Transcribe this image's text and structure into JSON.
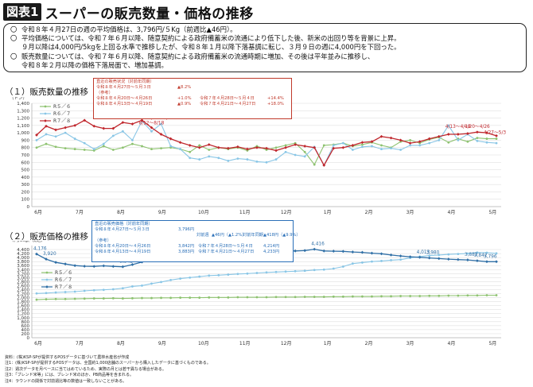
{
  "header": {
    "tag": "図表1",
    "title": "スーパーの販売数量・価格の推移"
  },
  "summary": {
    "bullets": [
      [
        "令和８年４月27日の週の平均価格は、3,796円/５Kg（前週比▲46円）。"
      ],
      [
        "平均価格については、令和７年６月以降、随意契約による政府備蓄米の流通により低下した後、新米の出回り等を背景に上昇。",
        "９月以降は4,000円/5kgを上回る水準で推移したが、令和８年１月以降下落基調に転じ、３月９日の週に4,000円を下回った。"
      ],
      [
        "販売数量については、令和７年６月以降、随意契約による政府備蓄米の流通時期に増加、その後は平年並みに推移し、",
        "令和８年２月以降の価格下落局面で、増加基調。"
      ]
    ],
    "bullet_mark": "〇"
  },
  "sales_box": {
    "title": "直近の販売状況（対前年同期）",
    "row1": {
      "period": "令和８年４月27日～５月３日",
      "value": "▲8.2%"
    },
    "ref_label": "（参考）",
    "row2": {
      "period": "令和８年４月20日～４月26日",
      "value": "+1.0%",
      "period2": "令和７年４月28日～５月４日",
      "value2": "+14.4%"
    },
    "row3": {
      "period": "令和８年４月13日～４月19日",
      "value": "▲0.9%",
      "period2": "令和７年４月21日～４月27日",
      "value2": "+18.0%"
    }
  },
  "price_box": {
    "title": "直近の販売価格（対前年同期）",
    "row1": {
      "period": "令和８年４月27日～５月３日",
      "price": "3,796円"
    },
    "row1b": {
      "label1": "対前週",
      "value1": "▲46円（▲1.2%）",
      "label2": "対前年同期",
      "value2": "▲418円（▲9.9%）"
    },
    "ref_label": "（参考）",
    "row2": {
      "period": "令和８年４月20日～４月26日",
      "price": "3,842円",
      "period2": "令和７年４月28日～５月４日",
      "price2": "4,214円"
    },
    "row3": {
      "period": "令和８年４月13日～４月19日",
      "price": "3,883円",
      "period2": "令和７年４月21日～４月27日",
      "price2": "4,233円"
    }
  },
  "notes": [
    "資料：(株)KSP-SPが提供するPOSデータに基づいて農林水産省が作成",
    "注1：(株)KSP-SPが提供するPOSデータは、全国約1,000店舗のスーパーから購入したデータに基づくものである。",
    "注2：週次データを月ベースに当てはめているため、実際の月とは若干異なる場合がある。",
    "注3：「ブレンド米等」には、ブレンド米のほか、PB商品等を含まれる。",
    "注4：ラウンドの関係で対前週比等の数値は一致しないことがある。"
  ],
  "chart_data": [
    {
      "type": "line",
      "title": "（１）販売数量の推移",
      "ylabel": "（トン）",
      "ylim": [
        0,
        1400
      ],
      "yticks": [
        0,
        100,
        200,
        300,
        400,
        500,
        600,
        700,
        800,
        900,
        1000,
        1100,
        1200,
        1300,
        1400
      ],
      "months": [
        "6月",
        "7月",
        "8月",
        "9月",
        "10月",
        "11月",
        "12月",
        "1月",
        "2月",
        "3月",
        "4月",
        "5月"
      ],
      "weeks": 49,
      "series": [
        {
          "name": "R５／６",
          "color": "#8dc26f",
          "marker": "circle",
          "values": [
            800,
            850,
            810,
            790,
            780,
            770,
            760,
            820,
            770,
            800,
            850,
            820,
            780,
            790,
            800,
            780,
            740,
            830,
            770,
            800,
            780,
            800,
            760,
            820,
            770,
            800,
            830,
            860,
            740,
            570,
            830,
            840,
            860,
            820,
            840,
            870,
            830,
            800,
            880,
            900,
            860,
            910,
            940,
            870,
            920,
            880,
            930,
            920,
            920
          ]
        },
        {
          "name": "R６／７",
          "color": "#89c6e6",
          "marker": "circle",
          "values": [
            900,
            980,
            950,
            1000,
            920,
            860,
            780,
            850,
            960,
            1020,
            900,
            1160,
            1020,
            1120,
            820,
            780,
            660,
            640,
            680,
            660,
            620,
            650,
            640,
            610,
            600,
            640,
            740,
            700,
            680,
            810,
            560,
            830,
            860,
            770,
            810,
            820,
            780,
            790,
            770,
            830,
            830,
            860,
            900,
            1100,
            900,
            980,
            890,
            870,
            860
          ]
        },
        {
          "name": "R７／８",
          "color": "#c0272d",
          "marker": "diamond",
          "values": [
            970,
            1090,
            1040,
            1070,
            1100,
            1170,
            1090,
            1060,
            1060,
            1140,
            1120,
            1170,
            1070,
            980,
            920,
            870,
            830,
            800,
            840,
            800,
            790,
            810,
            780,
            800,
            790,
            760,
            800,
            840,
            820,
            800,
            560,
            790,
            800,
            830,
            870,
            880,
            950,
            930,
            900,
            860,
            880,
            920,
            950,
            980,
            980,
            990,
            1010,
            1000,
            960
          ]
        }
      ],
      "annotations": [
        {
          "text": "8/5～8/11",
          "week": 9,
          "value": 1150
        },
        {
          "text": "8/12～8/18",
          "week": 11,
          "value": 1060
        },
        {
          "text": "8/19～8/25",
          "week": 12,
          "value": 1130
        },
        {
          "text": "4/13～4/19",
          "week": 43,
          "value": 1010
        },
        {
          "text": "4/20～4/26",
          "week": 45,
          "value": 1010
        },
        {
          "text": "4/27～5/3",
          "week": 47,
          "value": 930
        }
      ]
    },
    {
      "type": "line",
      "title": "（２）販売価格の推移",
      "ylabel": "（円/5kg、税込）",
      "ylim": [
        0,
        4600
      ],
      "yticks": [
        0,
        200,
        400,
        600,
        800,
        1000,
        1200,
        1400,
        1600,
        1800,
        2000,
        2200,
        2400,
        2600,
        2800,
        3000,
        3200,
        3400,
        3600,
        3800,
        4000,
        4200,
        4400
      ],
      "months": [
        "6月",
        "7月",
        "8月",
        "9月",
        "10月",
        "11月",
        "12月",
        "1月",
        "2月",
        "3月",
        "4月",
        "5月"
      ],
      "weeks": 49,
      "series": [
        {
          "name": "R５／６",
          "color": "#8dc26f",
          "marker": "circle",
          "values": [
            1900,
            1920,
            1930,
            1930,
            1940,
            1950,
            1960,
            1960,
            1970,
            1960,
            1970,
            1980,
            1980,
            1990,
            1990,
            2000,
            2000,
            2000,
            2010,
            2010,
            2010,
            2020,
            2020,
            2020,
            2020,
            2030,
            2030,
            2030,
            2040,
            2040,
            2040,
            2050,
            2050,
            2060,
            2060,
            2060,
            2070,
            2070,
            2080,
            2080,
            2080,
            2090,
            2090,
            2100,
            2100,
            2110,
            2110,
            2120,
            2120
          ]
        },
        {
          "name": "R６／７",
          "color": "#89c6e6",
          "marker": "circle",
          "values": [
            2210,
            2230,
            2260,
            2280,
            2300,
            2340,
            2370,
            2390,
            2420,
            2470,
            2560,
            2600,
            2700,
            2780,
            2880,
            2950,
            3000,
            3050,
            3100,
            3120,
            3150,
            3180,
            3200,
            3230,
            3260,
            3280,
            3300,
            3320,
            3340,
            3380,
            3400,
            3450,
            3550,
            3700,
            3750,
            3800,
            3830,
            3870,
            3900,
            3980,
            4050,
            4100,
            4130,
            4160,
            4180,
            4200,
            4250,
            4240,
            4210
          ]
        },
        {
          "name": "R７／８",
          "color": "#2f6fa6",
          "marker": "diamond",
          "values": [
            4176,
            3920,
            3760,
            3680,
            3600,
            3570,
            3560,
            3590,
            3560,
            3542,
            3650,
            3780,
            3891,
            4000,
            4155,
            4260,
            4280,
            4270,
            4280,
            4300,
            4300,
            4310,
            4310,
            4330,
            4340,
            4330,
            4340,
            4330,
            4350,
            4416,
            4330,
            4320,
            4310,
            4280,
            4260,
            4220,
            4190,
            4130,
            4080,
            4040,
            4013,
            3980,
            3950,
            3920,
            3900,
            3883,
            3842,
            3796,
            3796
          ]
        }
      ],
      "annotations": [
        {
          "text": "4,176",
          "week": 0,
          "value": 4176
        },
        {
          "text": "3,920",
          "week": 1,
          "value": 3920
        },
        {
          "text": "3,542",
          "week": 9,
          "value": 3542
        },
        {
          "text": "3,891",
          "week": 12,
          "value": 3891
        },
        {
          "text": "4,155",
          "week": 14,
          "value": 4155
        },
        {
          "text": "4,416",
          "week": 29,
          "value": 4416
        },
        {
          "text": "4,013",
          "week": 40,
          "value": 4013
        },
        {
          "text": "3,980",
          "week": 41,
          "value": 3980
        },
        {
          "text": "3,883",
          "week": 45,
          "value": 3883
        },
        {
          "text": "3,842",
          "week": 46,
          "value": 3842
        },
        {
          "text": "3,796",
          "week": 47,
          "value": 3796
        }
      ]
    }
  ]
}
